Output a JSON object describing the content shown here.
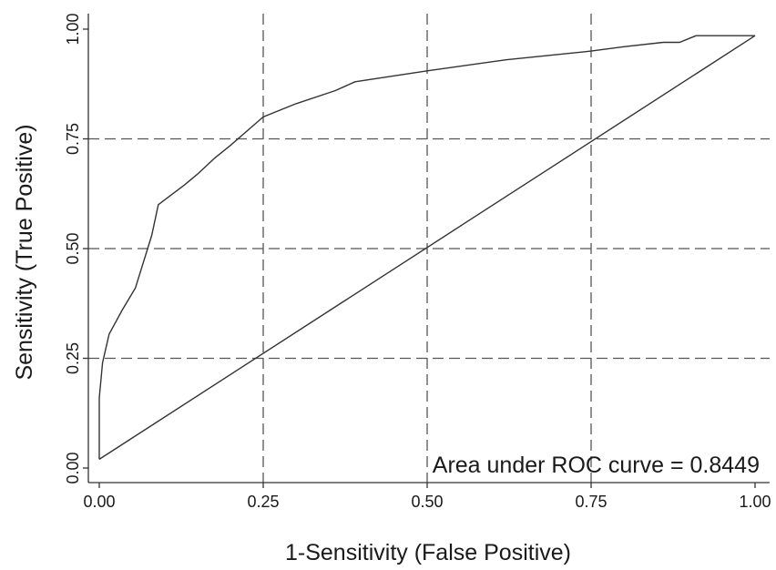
{
  "chart_data": {
    "type": "line",
    "title": "",
    "xlabel": "1-Sensitivity (False Positive)",
    "ylabel": "Sensitivity (True Positive)",
    "xlim": [
      0,
      1
    ],
    "ylim": [
      0,
      1
    ],
    "x_ticks": [
      "0.00",
      "0.25",
      "0.50",
      "0.75",
      "1.00"
    ],
    "y_ticks": [
      "0.00",
      "0.25",
      "0.50",
      "0.75",
      "1.00"
    ],
    "grid": "dashed at 0.25, 0.50, 0.75",
    "annotation": "Area under ROC curve = 0.8449",
    "series": [
      {
        "x": [
          0.0,
          0.0,
          0.005,
          0.015,
          0.035,
          0.055,
          0.08,
          0.09,
          0.13,
          0.15,
          0.175,
          0.2,
          0.25,
          0.3,
          0.36,
          0.39,
          0.5,
          0.62,
          0.75,
          0.8,
          0.86,
          0.885,
          0.91,
          1.0
        ],
        "y": [
          0.02,
          0.16,
          0.24,
          0.305,
          0.36,
          0.41,
          0.53,
          0.6,
          0.645,
          0.67,
          0.705,
          0.735,
          0.8,
          0.83,
          0.86,
          0.88,
          0.905,
          0.93,
          0.95,
          0.96,
          0.97,
          0.97,
          0.985,
          0.985
        ]
      },
      {
        "x": [
          0.0,
          1.0
        ],
        "y": [
          0.02,
          0.985
        ]
      }
    ]
  }
}
